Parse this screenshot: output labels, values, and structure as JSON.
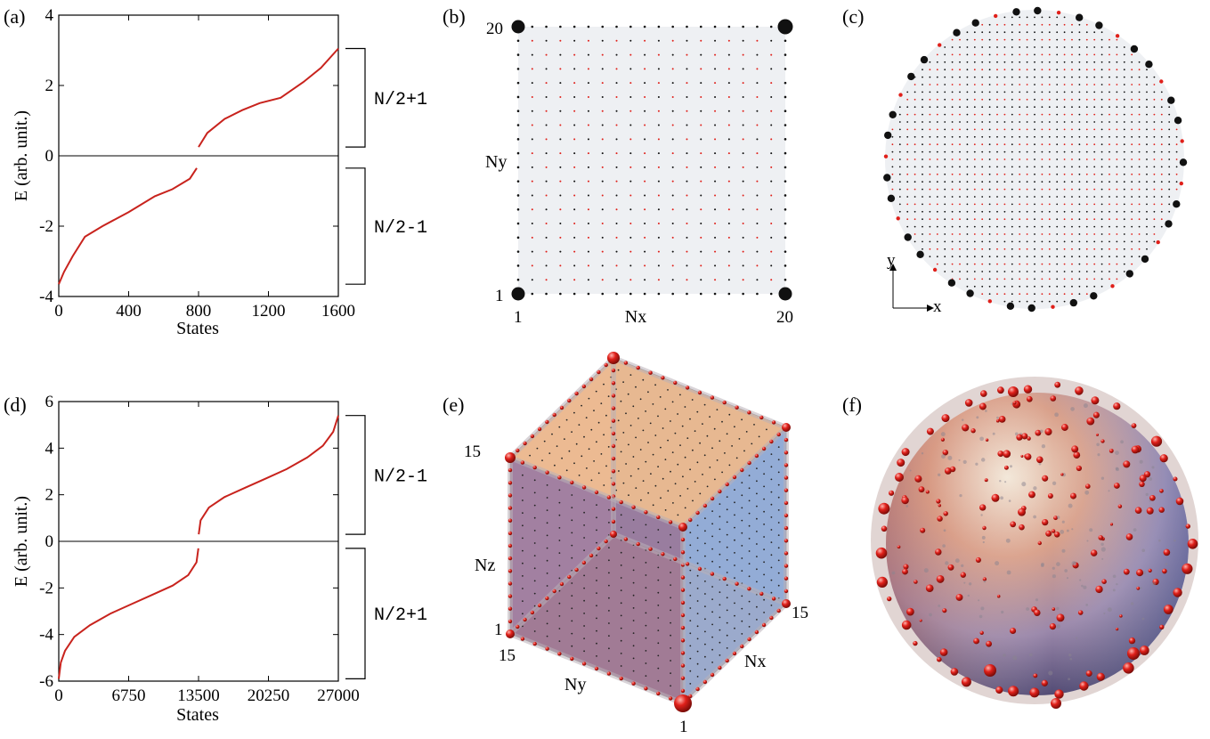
{
  "colors": {
    "curve": "#c8231d",
    "dot_black": "#111111",
    "dot_red": "#e0201a",
    "plane": "#eef0f3"
  },
  "panel_labels": [
    "(a)",
    "(b)",
    "(c)",
    "(d)",
    "(e)",
    "(f)"
  ],
  "chart_data": [
    {
      "id": "a",
      "type": "line",
      "ylabel": "E (arb. unit.)",
      "xlabel": "States",
      "xlim": [
        0,
        1600
      ],
      "ylim": [
        -4,
        4
      ],
      "xticks": [
        "0",
        "400",
        "800",
        "1200",
        "1600"
      ],
      "yticks": [
        "-4",
        "-2",
        "0",
        "2",
        "4"
      ],
      "series": [
        {
          "x": [
            0,
            30,
            80,
            150,
            250,
            400,
            550,
            650,
            750,
            790
          ],
          "y": [
            -3.65,
            -3.3,
            -2.85,
            -2.3,
            -2.0,
            -1.6,
            -1.15,
            -0.95,
            -0.65,
            -0.35
          ]
        },
        {
          "x": [
            800,
            850,
            950,
            1050,
            1150,
            1270,
            1400,
            1500,
            1600
          ],
          "y": [
            0.25,
            0.65,
            1.05,
            1.3,
            1.5,
            1.65,
            2.1,
            2.5,
            3.05
          ]
        }
      ],
      "brackets": [
        {
          "label": "N/2+1",
          "range": [
            0.25,
            3.05
          ]
        },
        {
          "label": "N/2-1",
          "range": [
            -3.65,
            -0.35
          ]
        }
      ]
    },
    {
      "id": "d",
      "type": "line",
      "ylabel": "E (arb. unit.)",
      "xlabel": "States",
      "xlim": [
        0,
        27000
      ],
      "ylim": [
        -6,
        6
      ],
      "xticks": [
        "0",
        "6750",
        "13500",
        "20250",
        "27000"
      ],
      "yticks": [
        "-6",
        "-4",
        "-2",
        "0",
        "2",
        "4",
        "6"
      ],
      "series": [
        {
          "x": [
            0,
            200,
            600,
            1500,
            3000,
            5000,
            7000,
            9000,
            11000,
            12500,
            13300,
            13480
          ],
          "y": [
            -5.9,
            -5.2,
            -4.7,
            -4.1,
            -3.6,
            -3.1,
            -2.7,
            -2.3,
            -1.9,
            -1.45,
            -0.9,
            -0.3
          ]
        },
        {
          "x": [
            13520,
            13700,
            14500,
            16000,
            18000,
            20000,
            22000,
            24000,
            25500,
            26500,
            27000
          ],
          "y": [
            0.3,
            0.9,
            1.45,
            1.9,
            2.3,
            2.7,
            3.1,
            3.6,
            4.1,
            4.7,
            5.4
          ]
        }
      ],
      "brackets": [
        {
          "label": "N/2-1",
          "range": [
            0.3,
            5.4
          ]
        },
        {
          "label": "N/2+1",
          "range": [
            -5.9,
            -0.3
          ]
        }
      ]
    },
    {
      "id": "b",
      "type": "scatter",
      "lattice": "square",
      "xlabel": "Nx",
      "ylabel": "Ny",
      "n": 20,
      "corner_labels": {
        "x_min": "1",
        "x_max": "20",
        "y_min": "1",
        "y_max": "20"
      }
    },
    {
      "id": "c",
      "type": "scatter",
      "lattice": "disk",
      "axes_labels": {
        "x": "x",
        "y": "y"
      }
    },
    {
      "id": "e",
      "type": "scatter",
      "lattice": "cube",
      "axis_labels": {
        "x": "Nx",
        "y": "Ny",
        "z": "Nz"
      },
      "tick_labels": {
        "z_max": "15",
        "z_min": "1",
        "y_start": "15",
        "x_end": "15",
        "origin": "1"
      }
    },
    {
      "id": "f",
      "type": "scatter",
      "lattice": "sphere"
    }
  ]
}
